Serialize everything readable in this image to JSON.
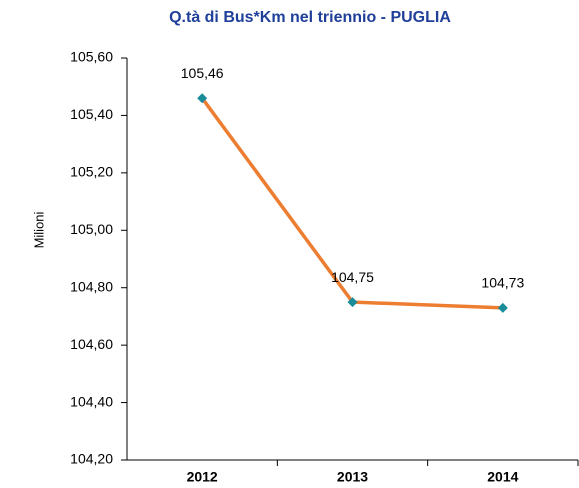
{
  "chart_data": {
    "type": "line",
    "title": "Q.tà di Bus*Km nel triennio - PUGLIA",
    "y_label": "Milioni",
    "categories": [
      "2012",
      "2013",
      "2014"
    ],
    "series": [
      {
        "name": "Bus*Km",
        "color": "#ED7D31",
        "marker_color": "#1A8C99",
        "values": [
          105.46,
          104.75,
          104.73
        ],
        "value_labels": [
          "105,46",
          "104,75",
          "104,73"
        ]
      }
    ],
    "ylim": [
      104.2,
      105.6
    ],
    "yticks": [
      {
        "value": 104.2,
        "label": "104,20"
      },
      {
        "value": 104.4,
        "label": "104,40"
      },
      {
        "value": 104.6,
        "label": "104,60"
      },
      {
        "value": 104.8,
        "label": "104,80"
      },
      {
        "value": 105.0,
        "label": "105,00"
      },
      {
        "value": 105.2,
        "label": "105,20"
      },
      {
        "value": 105.4,
        "label": "105,40"
      },
      {
        "value": 105.6,
        "label": "105,60"
      }
    ],
    "grid": false
  }
}
